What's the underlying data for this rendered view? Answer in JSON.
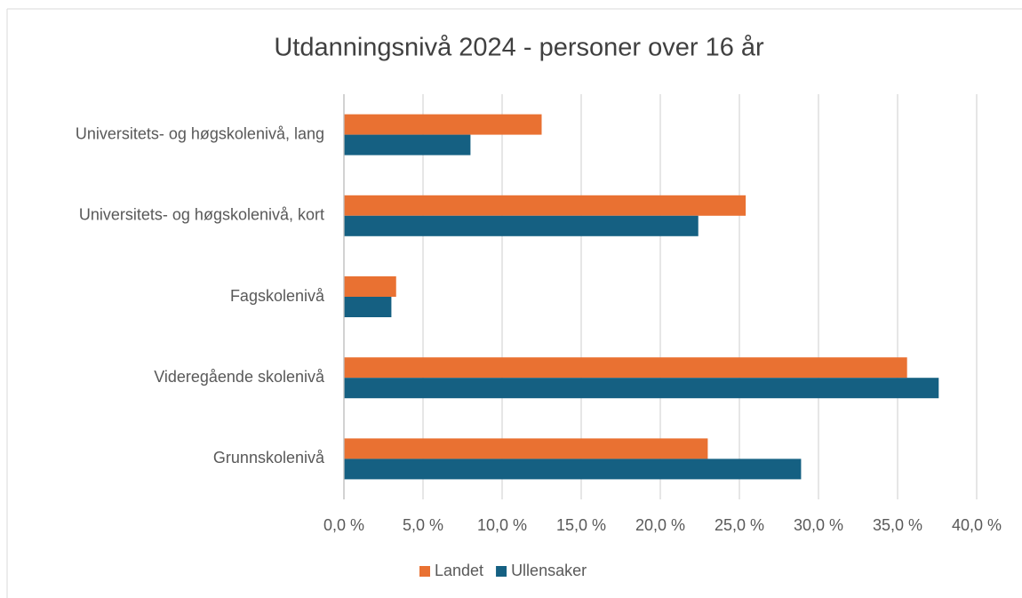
{
  "chart_data": {
    "type": "hbar",
    "title": "Utdanningsnivå 2024 - personer over 16 år",
    "categories": [
      "Universitets- og høgskolenivå, lang",
      "Universitets- og høgskolenivå, kort",
      "Fagskolenivå",
      "Videregående skolenivå",
      "Grunnskolenivå"
    ],
    "series": [
      {
        "name": "Landet",
        "color": "#e97132",
        "values": [
          12.5,
          25.4,
          3.3,
          35.6,
          23.0
        ]
      },
      {
        "name": "Ullensaker",
        "color": "#156082",
        "values": [
          8.0,
          22.4,
          3.0,
          37.6,
          28.9
        ]
      }
    ],
    "xlim": [
      0,
      40
    ],
    "xticks": [
      {
        "value": 0,
        "label": "0,0 %"
      },
      {
        "value": 5,
        "label": "5,0 %"
      },
      {
        "value": 10,
        "label": "10,0 %"
      },
      {
        "value": 15,
        "label": "15,0 %"
      },
      {
        "value": 20,
        "label": "20,0 %"
      },
      {
        "value": 25,
        "label": "25,0 %"
      },
      {
        "value": 30,
        "label": "30,0 %"
      },
      {
        "value": 35,
        "label": "35,0 %"
      },
      {
        "value": 40,
        "label": "40,0 %"
      }
    ],
    "grid": true,
    "legend": "bottom"
  }
}
